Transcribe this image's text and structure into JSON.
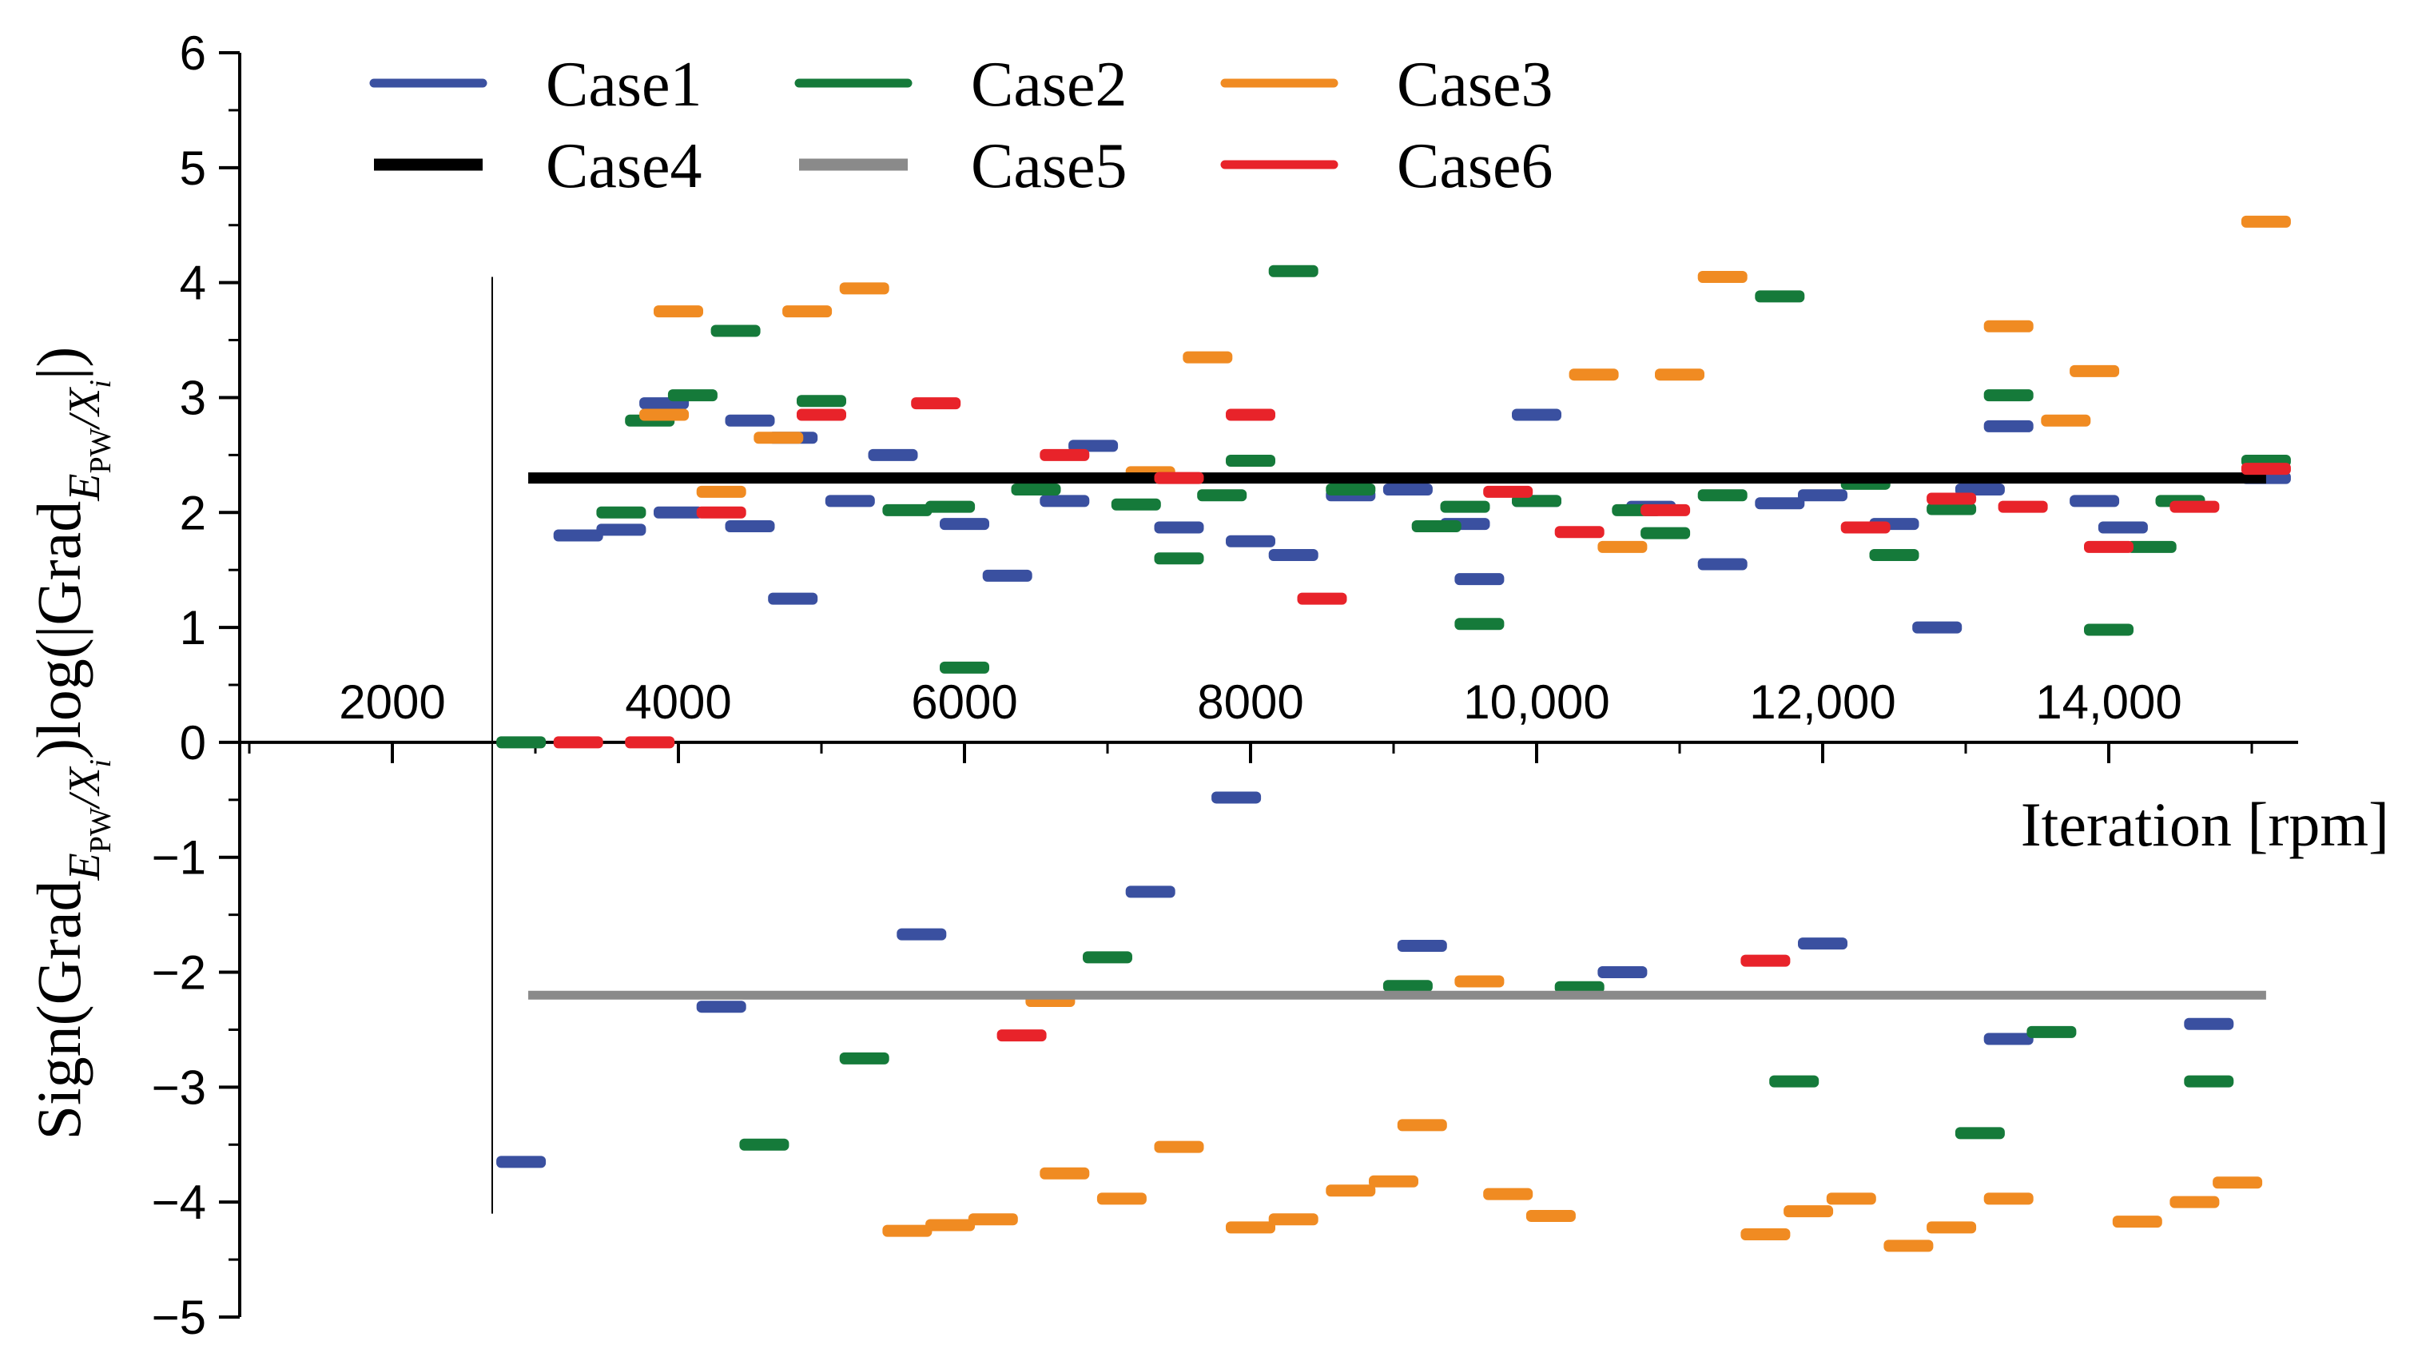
{
  "chart_data": {
    "type": "scatter",
    "marker": "horizontal-dash",
    "xlabel": "Iteration [rpm]",
    "ylabel": {
      "prefix": "Sign(Grad",
      "sub_main": "E",
      "sub_sub": "PW",
      "sub_rest": "/X",
      "sub_i": "i",
      "mid": ")log(|Grad",
      "suffix": "|)"
    },
    "xlim": [
      1000,
      15100
    ],
    "ylim": [
      -5,
      6
    ],
    "x_ticks": [
      {
        "value": 2000,
        "label": "2000"
      },
      {
        "value": 4000,
        "label": "4000"
      },
      {
        "value": 6000,
        "label": "6000"
      },
      {
        "value": 8000,
        "label": "8000"
      },
      {
        "value": 10000,
        "label": "10,000"
      },
      {
        "value": 12000,
        "label": "12,000"
      },
      {
        "value": 14000,
        "label": "14,000"
      }
    ],
    "y_ticks": [
      {
        "value": 6,
        "label": "6"
      },
      {
        "value": 5,
        "label": "5"
      },
      {
        "value": 4,
        "label": "4"
      },
      {
        "value": 3,
        "label": "3"
      },
      {
        "value": 2,
        "label": "2"
      },
      {
        "value": 1,
        "label": "1"
      },
      {
        "value": 0,
        "label": "0"
      },
      {
        "value": -1,
        "label": "−1"
      },
      {
        "value": -2,
        "label": "−2"
      },
      {
        "value": -3,
        "label": "−3"
      },
      {
        "value": -4,
        "label": "−4"
      },
      {
        "value": -5,
        "label": "−5"
      }
    ],
    "legend_position": "top-left",
    "series": [
      {
        "name": "Case1",
        "color": "#3a50a0",
        "points": [
          [
            2900,
            -3.65
          ],
          [
            3300,
            1.8
          ],
          [
            3600,
            1.85
          ],
          [
            3900,
            2.95
          ],
          [
            4000,
            2.0
          ],
          [
            4300,
            -2.3
          ],
          [
            4500,
            2.8
          ],
          [
            4500,
            1.88
          ],
          [
            4800,
            2.65
          ],
          [
            4800,
            1.25
          ],
          [
            5200,
            2.1
          ],
          [
            5500,
            2.5
          ],
          [
            5700,
            -1.67
          ],
          [
            6000,
            1.9
          ],
          [
            6300,
            1.45
          ],
          [
            6700,
            2.1
          ],
          [
            6900,
            2.58
          ],
          [
            7300,
            -1.3
          ],
          [
            7500,
            1.87
          ],
          [
            7900,
            -0.48
          ],
          [
            8000,
            1.75
          ],
          [
            8300,
            1.63
          ],
          [
            8700,
            2.15
          ],
          [
            9100,
            2.2
          ],
          [
            9200,
            -1.77
          ],
          [
            9500,
            1.9
          ],
          [
            9600,
            1.42
          ],
          [
            10000,
            2.1
          ],
          [
            10000,
            2.85
          ],
          [
            10600,
            -2.0
          ],
          [
            10800,
            2.05
          ],
          [
            11300,
            1.55
          ],
          [
            11700,
            2.08
          ],
          [
            12000,
            2.15
          ],
          [
            12000,
            -1.75
          ],
          [
            12500,
            1.9
          ],
          [
            12800,
            1.0
          ],
          [
            13100,
            2.2
          ],
          [
            13300,
            2.75
          ],
          [
            13300,
            -2.58
          ],
          [
            13900,
            2.1
          ],
          [
            14100,
            1.87
          ],
          [
            14700,
            -2.45
          ],
          [
            15100,
            2.3
          ]
        ]
      },
      {
        "name": "Case2",
        "color": "#157a3a",
        "points": [
          [
            2900,
            0.0
          ],
          [
            3600,
            2.0
          ],
          [
            3800,
            2.8
          ],
          [
            4100,
            3.02
          ],
          [
            4400,
            3.58
          ],
          [
            4600,
            -3.5
          ],
          [
            5000,
            2.97
          ],
          [
            5300,
            -2.75
          ],
          [
            5600,
            2.02
          ],
          [
            5900,
            2.05
          ],
          [
            6000,
            0.65
          ],
          [
            6500,
            2.2
          ],
          [
            7000,
            -1.87
          ],
          [
            7200,
            2.07
          ],
          [
            7500,
            1.6
          ],
          [
            7800,
            2.15
          ],
          [
            8000,
            2.45
          ],
          [
            8300,
            4.1
          ],
          [
            8700,
            2.2
          ],
          [
            9100,
            -2.12
          ],
          [
            9300,
            1.88
          ],
          [
            9500,
            2.05
          ],
          [
            9600,
            1.03
          ],
          [
            10000,
            2.1
          ],
          [
            10300,
            -2.13
          ],
          [
            10700,
            2.02
          ],
          [
            10900,
            1.82
          ],
          [
            11300,
            2.15
          ],
          [
            11700,
            3.88
          ],
          [
            11800,
            -2.95
          ],
          [
            12300,
            2.25
          ],
          [
            12500,
            1.63
          ],
          [
            12900,
            2.03
          ],
          [
            13100,
            -3.4
          ],
          [
            13300,
            3.02
          ],
          [
            13600,
            -2.52
          ],
          [
            14000,
            0.98
          ],
          [
            14300,
            1.7
          ],
          [
            14500,
            2.1
          ],
          [
            14700,
            -2.95
          ],
          [
            15100,
            2.45
          ]
        ]
      },
      {
        "name": "Case3",
        "color": "#f08b22",
        "points": [
          [
            3900,
            2.85
          ],
          [
            4000,
            3.75
          ],
          [
            4300,
            2.18
          ],
          [
            4700,
            2.65
          ],
          [
            4900,
            3.75
          ],
          [
            5300,
            3.95
          ],
          [
            5600,
            -4.25
          ],
          [
            5900,
            -4.2
          ],
          [
            6200,
            -4.15
          ],
          [
            6600,
            -2.25
          ],
          [
            6700,
            -3.75
          ],
          [
            7100,
            -3.97
          ],
          [
            7300,
            2.35
          ],
          [
            7500,
            -3.52
          ],
          [
            7700,
            3.35
          ],
          [
            8000,
            -4.22
          ],
          [
            8300,
            -4.15
          ],
          [
            8700,
            -3.9
          ],
          [
            9000,
            -3.82
          ],
          [
            9200,
            -3.33
          ],
          [
            9600,
            -2.08
          ],
          [
            9800,
            -3.93
          ],
          [
            10100,
            -4.12
          ],
          [
            10400,
            3.2
          ],
          [
            10600,
            1.7
          ],
          [
            11000,
            3.2
          ],
          [
            11300,
            4.05
          ],
          [
            11600,
            -4.28
          ],
          [
            11900,
            -4.08
          ],
          [
            12200,
            -3.97
          ],
          [
            12600,
            -4.38
          ],
          [
            12900,
            -4.22
          ],
          [
            13300,
            -3.97
          ],
          [
            13300,
            3.62
          ],
          [
            13700,
            2.8
          ],
          [
            13900,
            3.23
          ],
          [
            14200,
            -4.17
          ],
          [
            14600,
            -4.0
          ],
          [
            14900,
            -3.83
          ],
          [
            15100,
            4.53
          ]
        ]
      },
      {
        "name": "Case4",
        "color": "#000000",
        "line": {
          "x_start": 2950,
          "x_end": 15100,
          "y": 2.3
        }
      },
      {
        "name": "Case5",
        "color": "#8a8a8a",
        "line": {
          "x_start": 2950,
          "x_end": 15100,
          "y": -2.2
        }
      },
      {
        "name": "Case6",
        "color": "#e8232a",
        "points": [
          [
            3300,
            0.0
          ],
          [
            3800,
            0.0
          ],
          [
            4300,
            2.0
          ],
          [
            5000,
            2.85
          ],
          [
            5800,
            2.95
          ],
          [
            6400,
            -2.55
          ],
          [
            6700,
            2.5
          ],
          [
            7500,
            2.3
          ],
          [
            8000,
            2.85
          ],
          [
            8500,
            1.25
          ],
          [
            9800,
            2.18
          ],
          [
            10300,
            1.83
          ],
          [
            10900,
            2.02
          ],
          [
            11600,
            -1.9
          ],
          [
            12300,
            1.87
          ],
          [
            12900,
            2.12
          ],
          [
            13400,
            2.05
          ],
          [
            14000,
            1.7
          ],
          [
            14600,
            2.05
          ],
          [
            15100,
            2.38
          ]
        ]
      }
    ]
  }
}
